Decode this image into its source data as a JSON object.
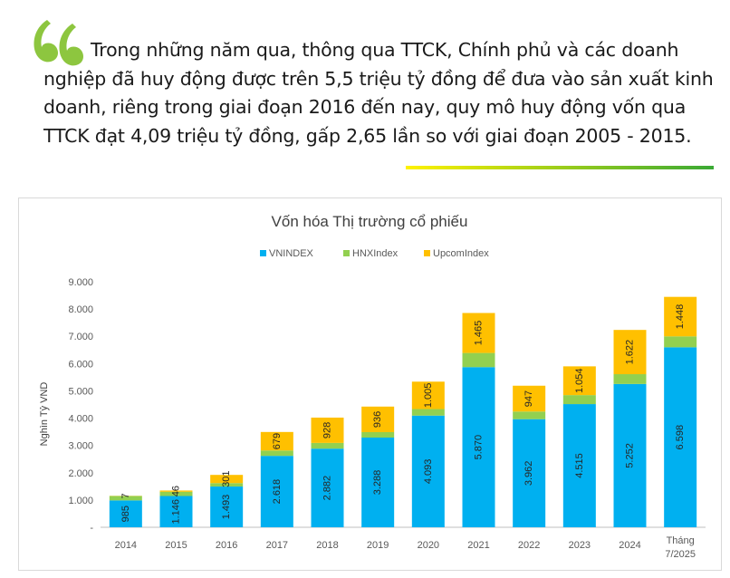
{
  "quote": {
    "text": "Trong những năm qua, thông qua TTCK, Chính phủ và các doanh nghiệp đã huy động được trên 5,5 triệu tỷ đồng để đưa vào sản xuất kinh doanh, riêng trong giai đoạn 2016 đến nay, quy mô huy động vốn qua TTCK đạt 4,09 triệu tỷ đồng, gấp 2,65 lần so với giai đoạn 2005 - 2015.",
    "accent_color": "#8dc63f",
    "icon": "quote-mark-icon"
  },
  "chart_data": {
    "type": "bar",
    "stacked": true,
    "title": "Vốn hóa Thị trường cổ phiếu",
    "ylabel": "Nghìn Tỷ VND",
    "xlabel": "",
    "ylim": [
      0,
      9000
    ],
    "yticks": [
      "-",
      "1.000",
      "2.000",
      "3.000",
      "4.000",
      "5.000",
      "6.000",
      "7.000",
      "8.000",
      "9.000"
    ],
    "grid": false,
    "legend_position": "top",
    "categories": [
      "2014",
      "2015",
      "2016",
      "2017",
      "2018",
      "2019",
      "2020",
      "2021",
      "2022",
      "2023",
      "2024",
      "Tháng 7/2025"
    ],
    "series": [
      {
        "name": "VNINDEX",
        "color": "#00b0f0",
        "values": [
          985,
          1146,
          1493,
          2618,
          2882,
          3288,
          4093,
          5870,
          3962,
          4515,
          5252,
          6598
        ],
        "labels": [
          "985",
          "1.146",
          "1.493",
          "2.618",
          "2.882",
          "3.288",
          "4.093",
          "5.870",
          "3.962",
          "4.515",
          "5.252",
          "6.598"
        ]
      },
      {
        "name": "HNXIndex",
        "color": "#92d050",
        "values": [
          160,
          155,
          126,
          196,
          210,
          200,
          240,
          520,
          280,
          330,
          360,
          400
        ],
        "labels": [
          "",
          "",
          "",
          "",
          "",
          "",
          "",
          "",
          "",
          "",
          "",
          ""
        ]
      },
      {
        "name": "UpcomIndex",
        "color": "#ffc000",
        "values": [
          7,
          46,
          301,
          679,
          928,
          936,
          1005,
          1465,
          947,
          1054,
          1622,
          1448
        ],
        "labels": [
          "7",
          "46",
          "301",
          "679",
          "928",
          "936",
          "1.005",
          "1.465",
          "947",
          "1.054",
          "1.622",
          "1.448"
        ]
      }
    ]
  }
}
